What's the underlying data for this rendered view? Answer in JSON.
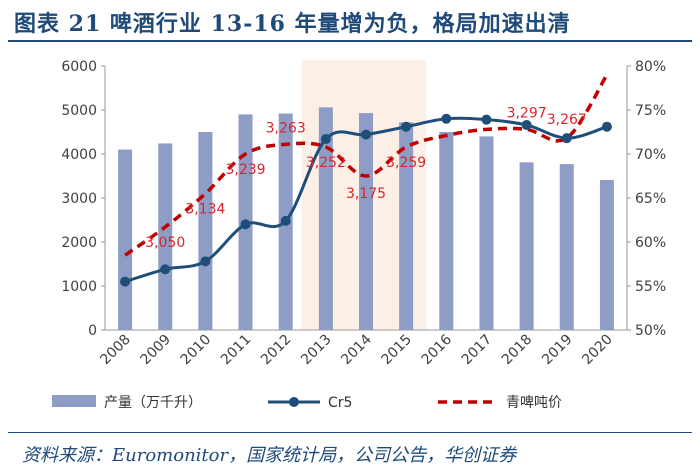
{
  "figure_title": "图表 21   啤酒行业 13-16 年量增为负，格局加速出清",
  "source": "资料来源：Euromonitor，国家统计局，公司公告，华创证券",
  "chart_data": {
    "type": "bar",
    "title": "图表 21   啤酒行业 13-16 年量增为负，格局加速出清",
    "categories": [
      "2008",
      "2009",
      "2010",
      "2011",
      "2012",
      "2013",
      "2014",
      "2015",
      "2016",
      "2017",
      "2018",
      "2019",
      "2020"
    ],
    "highlight_range": [
      "2013",
      "2015"
    ],
    "y_left": {
      "lim": [
        0,
        6000
      ],
      "ticks": [
        0,
        1000,
        2000,
        3000,
        4000,
        5000,
        6000
      ]
    },
    "y_right": {
      "lim": [
        0.5,
        0.8
      ],
      "ticks": [
        "50%",
        "55%",
        "60%",
        "65%",
        "70%",
        "75%",
        "80%"
      ],
      "tick_values": [
        0.5,
        0.55,
        0.6,
        0.65,
        0.7,
        0.75,
        0.8
      ]
    },
    "series": [
      {
        "name": "产量（万千升）",
        "type": "bar",
        "axis": "left",
        "color": "#8e9dc6",
        "values": [
          4100,
          4240,
          4500,
          4900,
          4920,
          5060,
          4930,
          4720,
          4500,
          4400,
          3810,
          3770,
          3410
        ]
      },
      {
        "name": "Cr5",
        "type": "line",
        "axis": "right",
        "color": "#1f4e79",
        "values": [
          0.555,
          0.569,
          0.578,
          0.62,
          0.624,
          0.717,
          0.722,
          0.731,
          0.74,
          0.739,
          0.733,
          0.718,
          0.731
        ]
      },
      {
        "name": "青啤吨价",
        "type": "line",
        "axis": "right",
        "style": "dashed",
        "color": "#c00000",
        "values": [
          0.585,
          0.617,
          0.655,
          0.7,
          0.711,
          0.708,
          0.675,
          0.708,
          0.721,
          0.728,
          0.728,
          0.718,
          0.79
        ]
      }
    ],
    "data_labels": [
      {
        "category": "2009",
        "text": "3,050"
      },
      {
        "category": "2010",
        "text": "3,134"
      },
      {
        "category": "2011",
        "text": "3,239"
      },
      {
        "category": "2012",
        "text": "3,263"
      },
      {
        "category": "2013",
        "text": "3,252"
      },
      {
        "category": "2014",
        "text": "3,175"
      },
      {
        "category": "2015",
        "text": "3,259"
      },
      {
        "category": "2018",
        "text": "3,297"
      },
      {
        "category": "2019",
        "text": "3,267"
      }
    ],
    "legend": {
      "position": "bottom",
      "items": [
        {
          "label": "产量（万千升）",
          "symbol": "bar"
        },
        {
          "label": "Cr5",
          "symbol": "line-marker"
        },
        {
          "label": "青啤吨价",
          "symbol": "dashed-line"
        }
      ]
    }
  }
}
